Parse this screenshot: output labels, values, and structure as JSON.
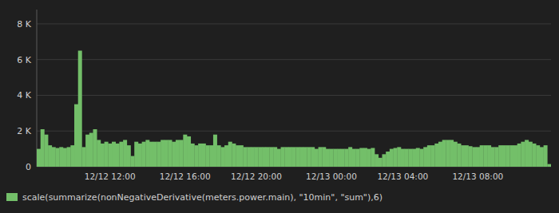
{
  "chart_data": {
    "type": "bar",
    "categories": [
      null,
      null,
      null,
      null,
      null,
      null,
      null,
      null,
      null,
      null,
      null,
      null,
      null,
      null,
      null,
      null,
      null,
      null,
      null,
      "12/12 12:00",
      null,
      null,
      null,
      null,
      null,
      null,
      null,
      null,
      null,
      null,
      null,
      null,
      null,
      null,
      null,
      null,
      null,
      null,
      null,
      "12/12 16:00",
      null,
      null,
      null,
      null,
      null,
      null,
      null,
      null,
      null,
      null,
      null,
      null,
      null,
      null,
      null,
      null,
      null,
      null,
      "12/12 20:00",
      null,
      null,
      null,
      null,
      null,
      null,
      null,
      null,
      null,
      null,
      null,
      null,
      null,
      null,
      null,
      null,
      null,
      null,
      null,
      "12/13 00:00",
      null,
      null,
      null,
      null,
      null,
      null,
      null,
      null,
      null,
      null,
      null,
      null,
      null,
      null,
      null,
      null,
      null,
      null,
      "12/13 04:00",
      null,
      null,
      null,
      null,
      null,
      null,
      null,
      null,
      null,
      null,
      null,
      null,
      null,
      null,
      null,
      null,
      null,
      null,
      null,
      "12/13 08:00",
      null,
      null,
      null,
      null,
      null,
      null,
      null,
      null,
      null,
      null,
      null,
      null,
      null,
      null,
      null,
      null,
      null,
      null,
      null
    ],
    "series": [
      {
        "name": "scale(summarize(nonNegativeDerivative(meters.power.main), \"10min\", \"sum\"),6)",
        "color": "#73bf69",
        "values": [
          1000,
          2100,
          1800,
          1200,
          1100,
          1050,
          1100,
          1050,
          1100,
          1200,
          3500,
          6500,
          1100,
          1800,
          1900,
          2100,
          1500,
          1300,
          1400,
          1300,
          1400,
          1300,
          1400,
          1500,
          1200,
          600,
          1400,
          1300,
          1400,
          1500,
          1400,
          1400,
          1400,
          1500,
          1500,
          1500,
          1400,
          1500,
          1500,
          1800,
          1700,
          1300,
          1200,
          1300,
          1300,
          1200,
          1200,
          1800,
          1200,
          1100,
          1200,
          1400,
          1300,
          1200,
          1200,
          1100,
          1100,
          1100,
          1100,
          1100,
          1100,
          1100,
          1100,
          1100,
          1000,
          1100,
          1100,
          1100,
          1100,
          1100,
          1100,
          1100,
          1100,
          1100,
          1000,
          1100,
          1100,
          1000,
          1000,
          1000,
          1000,
          1000,
          1000,
          1100,
          1000,
          1000,
          1050,
          1050,
          1000,
          1050,
          700,
          500,
          700,
          850,
          1000,
          1050,
          1100,
          1000,
          1000,
          1000,
          1000,
          1050,
          1000,
          1100,
          1200,
          1200,
          1300,
          1400,
          1500,
          1500,
          1500,
          1400,
          1300,
          1200,
          1200,
          1150,
          1100,
          1100,
          1200,
          1200,
          1200,
          1100,
          1100,
          1200,
          1200,
          1200,
          1200,
          1200,
          1300,
          1400,
          1500,
          1400,
          1300,
          1200,
          1100,
          1200,
          150
        ]
      }
    ],
    "ylim": [
      0,
      8800
    ],
    "yticks": [
      0,
      {
        "value": 2000,
        "label": "2 K"
      },
      {
        "value": 4000,
        "label": "4 K"
      },
      {
        "value": 6000,
        "label": "6 K"
      },
      {
        "value": 8000,
        "label": "8 K"
      }
    ],
    "grid": true,
    "legend": "lower left"
  }
}
